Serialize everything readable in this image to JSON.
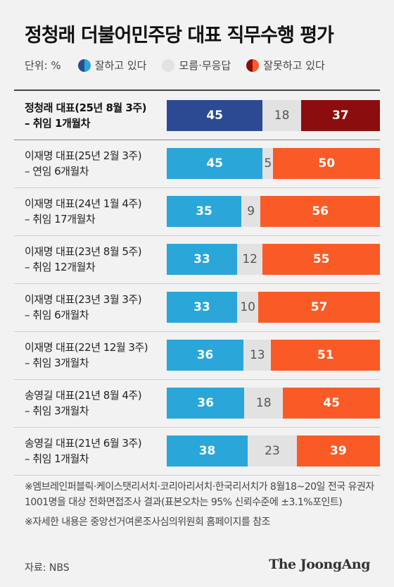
{
  "title": "정청래 더불어민주당 대표 직무수행 평가",
  "legend": {
    "unit": "단위: %",
    "items": [
      {
        "label": "잘하고 있다",
        "color": "#2e86c8"
      },
      {
        "label": "모름·무응답",
        "color": "#e2e2e2"
      },
      {
        "label": "잘못하고 있다",
        "color": "#e34a1e"
      }
    ]
  },
  "chart_data": {
    "type": "bar",
    "stacked": true,
    "orientation": "horizontal",
    "title": "정청래 더불어민주당 대표 직무수행 평가",
    "unit": "%",
    "categories": [
      [
        "정청래 대표(25년 8월 3주)",
        "– 취임 1개월차"
      ],
      [
        "이재명 대표(25년 2월 3주)",
        "– 연임 6개월차"
      ],
      [
        "이재명 대표(24년 1월 4주)",
        "– 취임 17개월차"
      ],
      [
        "이재명 대표(23년 8월 5주)",
        "– 취임 12개월차"
      ],
      [
        "이재명 대표(23년 3월 3주)",
        "– 취임 6개월차"
      ],
      [
        "이재명 대표(22년 12월 3주)",
        "– 취임 3개월차"
      ],
      [
        "송영길 대표(21년 8월 4주)",
        "– 취임 3개월차"
      ],
      [
        "송영길 대표(21년 6월 3주)",
        "– 취임 1개월차"
      ]
    ],
    "series": [
      {
        "name": "잘하고 있다",
        "values": [
          45,
          45,
          35,
          33,
          33,
          36,
          36,
          38
        ],
        "colors": [
          "#2b4a93",
          "#2aa6d9"
        ]
      },
      {
        "name": "모름·무응답",
        "values": [
          18,
          5,
          9,
          12,
          10,
          13,
          18,
          23
        ],
        "colors": [
          "#e2e2e2",
          "#e2e2e2"
        ]
      },
      {
        "name": "잘못하고 있다",
        "values": [
          37,
          50,
          56,
          55,
          57,
          51,
          45,
          39
        ],
        "colors": [
          "#8c0d0d",
          "#fa5a26"
        ]
      }
    ]
  },
  "notes": [
    "※엠브레인퍼블릭·케이스탯리서치·코리아리서치·한국리서치가 8월18~20일 전국 유권자 1001명을 대상 전화면접조사 결과(표본오차는 95% 신뢰수준에 ±3.1%포인트)",
    "※자세한 내용은 중앙선거여론조사심의위원회 홈페이지를 참조"
  ],
  "source": "자료: NBS",
  "brand": "The JoongAng"
}
